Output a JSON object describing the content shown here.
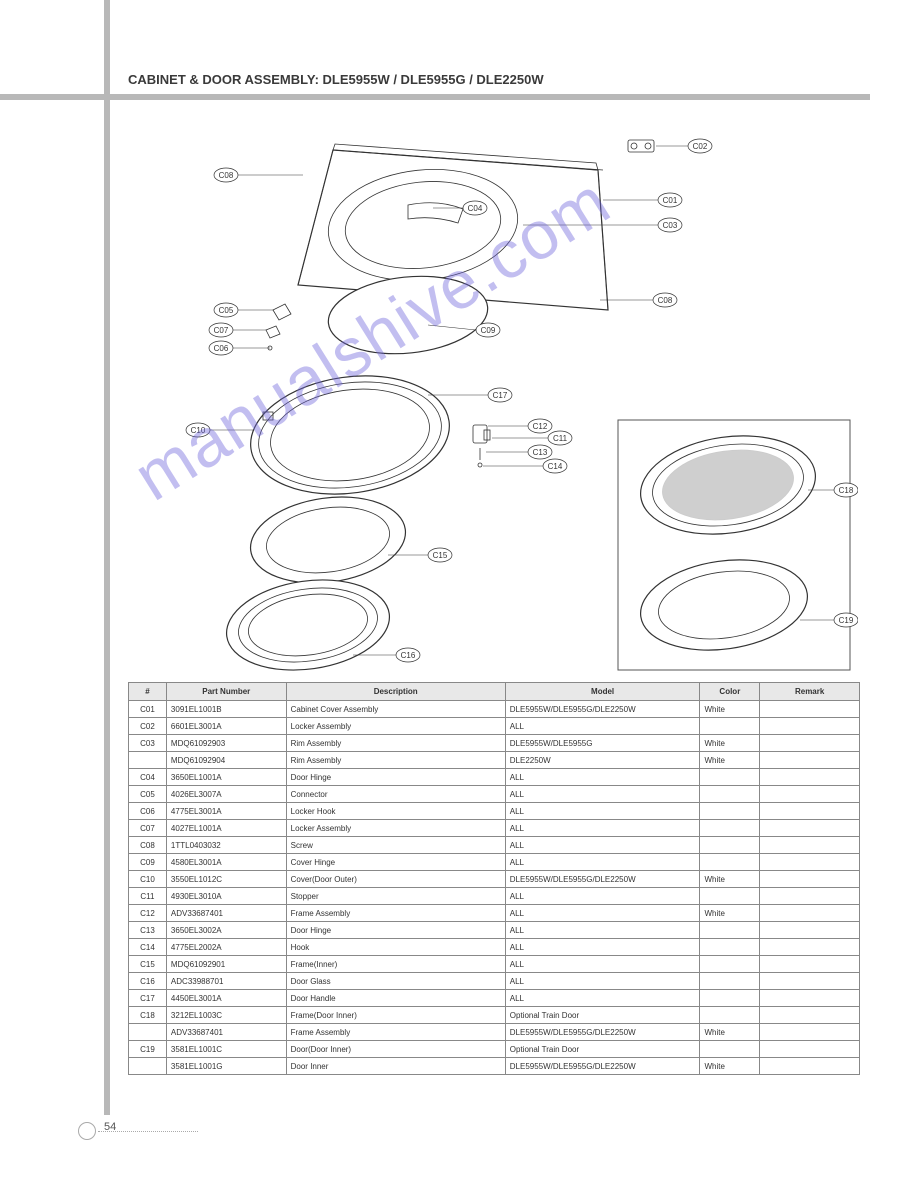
{
  "section_title": "CABINET & DOOR ASSEMBLY: DLE5955W / DLE5955G / DLE2250W",
  "page_number": "54",
  "watermark_text": "manualshive.com",
  "diagram": {
    "callouts": [
      "C01",
      "C02",
      "C03",
      "C04",
      "C05",
      "C06",
      "C07",
      "C08",
      "C09",
      "C10",
      "C11",
      "C12",
      "C13",
      "C14",
      "C15",
      "C16",
      "C17",
      "C18",
      "C19"
    ],
    "inset_parts": [
      "C18",
      "C19"
    ]
  },
  "table": {
    "columns": [
      "#",
      "Part Number",
      "Description",
      "Model",
      "Color",
      "Remark"
    ],
    "rows": [
      [
        "C01",
        "3091EL1001B",
        "Cabinet Cover Assembly",
        "DLE5955W/DLE5955G/DLE2250W",
        "White",
        ""
      ],
      [
        "C02",
        "6601EL3001A",
        "Locker Assembly",
        "ALL",
        "",
        ""
      ],
      [
        "C03",
        "MDQ61092903",
        "Rim Assembly",
        "DLE5955W/DLE5955G",
        "White",
        ""
      ],
      [
        "",
        "MDQ61092904",
        "Rim Assembly",
        "DLE2250W",
        "White",
        ""
      ],
      [
        "C04",
        "3650EL1001A",
        "Door Hinge",
        "ALL",
        "",
        ""
      ],
      [
        "C05",
        "4026EL3007A",
        "Connector",
        "ALL",
        "",
        ""
      ],
      [
        "C06",
        "4775EL3001A",
        "Locker Hook",
        "ALL",
        "",
        ""
      ],
      [
        "C07",
        "4027EL1001A",
        "Locker Assembly",
        "ALL",
        "",
        ""
      ],
      [
        "C08",
        "1TTL0403032",
        "Screw",
        "ALL",
        "",
        ""
      ],
      [
        "C09",
        "4580EL3001A",
        "Cover Hinge",
        "ALL",
        "",
        ""
      ],
      [
        "C10",
        "3550EL1012C",
        "Cover(Door Outer)",
        "DLE5955W/DLE5955G/DLE2250W",
        "White",
        ""
      ],
      [
        "C11",
        "4930EL3010A",
        "Stopper",
        "ALL",
        "",
        ""
      ],
      [
        "C12",
        "ADV33687401",
        "Frame Assembly",
        "ALL",
        "White",
        ""
      ],
      [
        "C13",
        "3650EL3002A",
        "Door Hinge",
        "ALL",
        "",
        ""
      ],
      [
        "C14",
        "4775EL2002A",
        "Hook",
        "ALL",
        "",
        ""
      ],
      [
        "C15",
        "MDQ61092901",
        "Frame(Inner)",
        "ALL",
        "",
        ""
      ],
      [
        "C16",
        "ADC33988701",
        "Door Glass",
        "ALL",
        "",
        ""
      ],
      [
        "C17",
        "4450EL3001A",
        "Door Handle",
        "ALL",
        "",
        ""
      ],
      [
        "C18",
        "3212EL1003C",
        "Frame(Door Inner)",
        "Optional Train Door",
        "",
        ""
      ],
      [
        "",
        "ADV33687401",
        "Frame Assembly",
        "DLE5955W/DLE5955G/DLE2250W",
        "White",
        ""
      ],
      [
        "C19",
        "3581EL1001C",
        "Door(Door Inner)",
        "Optional Train Door",
        "",
        ""
      ],
      [
        "",
        "3581EL1001G",
        "Door Inner",
        "DLE5955W/DLE5955G/DLE2250W",
        "White",
        ""
      ]
    ]
  }
}
